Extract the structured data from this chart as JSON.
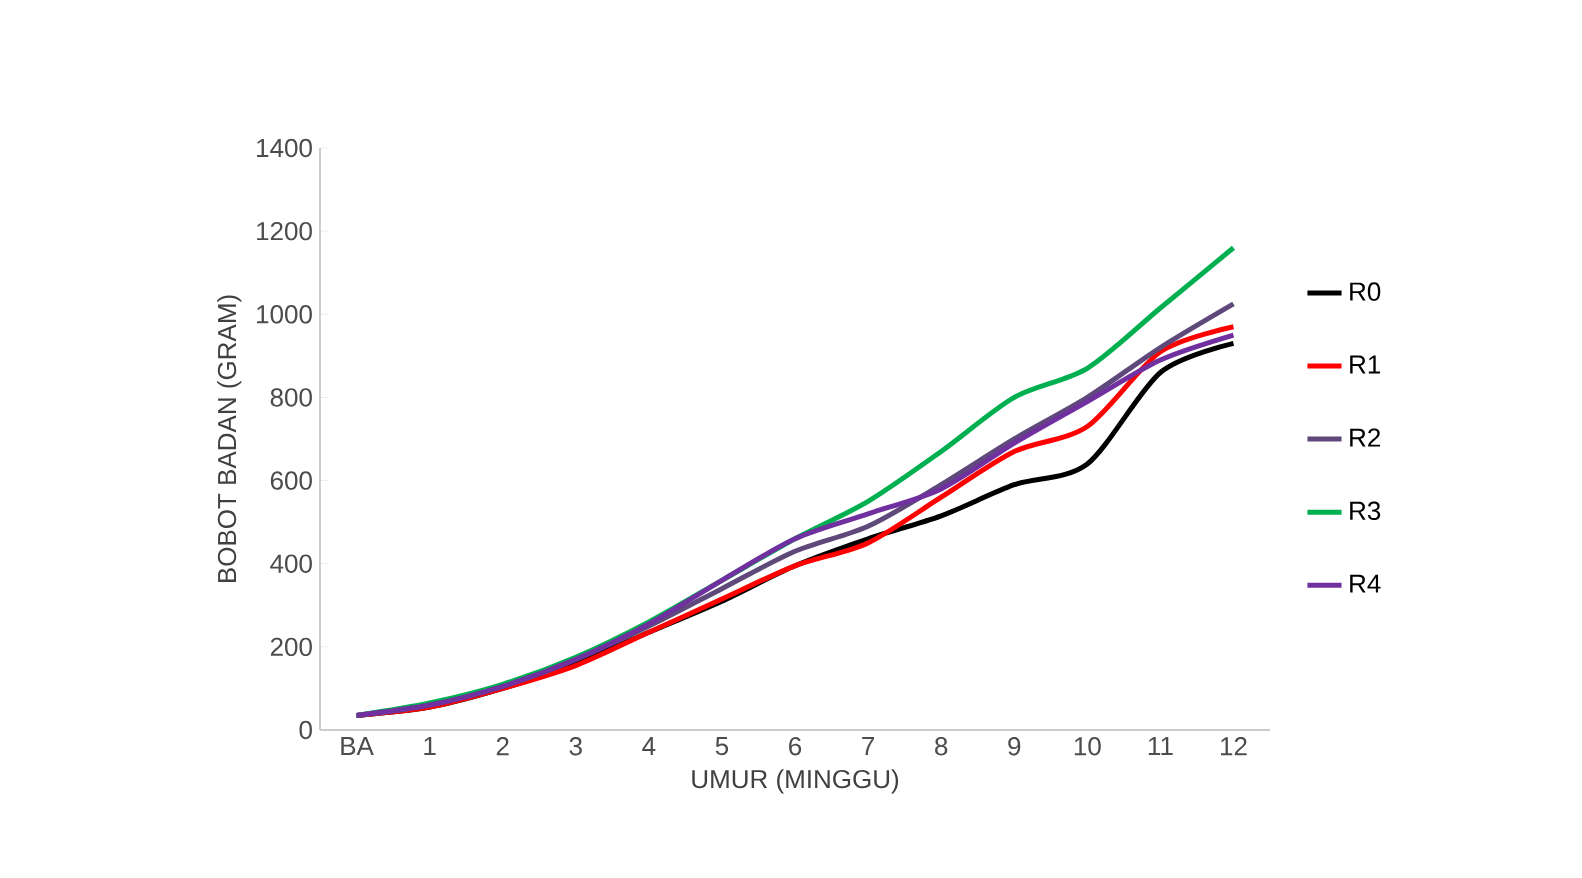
{
  "chart_data": {
    "type": "line",
    "xlabel": "UMUR (MINGGU)",
    "ylabel": "BOBOT BADAN (GRAM)",
    "categories": [
      "BA",
      "1",
      "2",
      "3",
      "4",
      "5",
      "6",
      "7",
      "8",
      "9",
      "10",
      "11",
      "12"
    ],
    "ylim": [
      0,
      1400
    ],
    "yticks": [
      0,
      200,
      400,
      600,
      800,
      1000,
      1200,
      1400
    ],
    "legend": "right",
    "grid": false,
    "series": [
      {
        "name": "R0",
        "color": "#000000",
        "values": [
          35,
          55,
          100,
          160,
          235,
          310,
          395,
          460,
          515,
          590,
          640,
          860,
          930
        ]
      },
      {
        "name": "R1",
        "color": "#ff0000",
        "values": [
          35,
          55,
          100,
          155,
          235,
          315,
          395,
          450,
          560,
          670,
          730,
          910,
          970
        ]
      },
      {
        "name": "R2",
        "color": "#5f497a",
        "values": [
          35,
          60,
          105,
          170,
          250,
          340,
          430,
          490,
          590,
          700,
          800,
          920,
          1025
        ]
      },
      {
        "name": "R3",
        "color": "#00b050",
        "values": [
          35,
          65,
          110,
          175,
          260,
          360,
          460,
          550,
          670,
          800,
          870,
          1015,
          1160
        ]
      },
      {
        "name": "R4",
        "color": "#7030a0",
        "values": [
          35,
          60,
          105,
          170,
          255,
          360,
          460,
          520,
          580,
          690,
          790,
          890,
          950
        ]
      }
    ]
  }
}
